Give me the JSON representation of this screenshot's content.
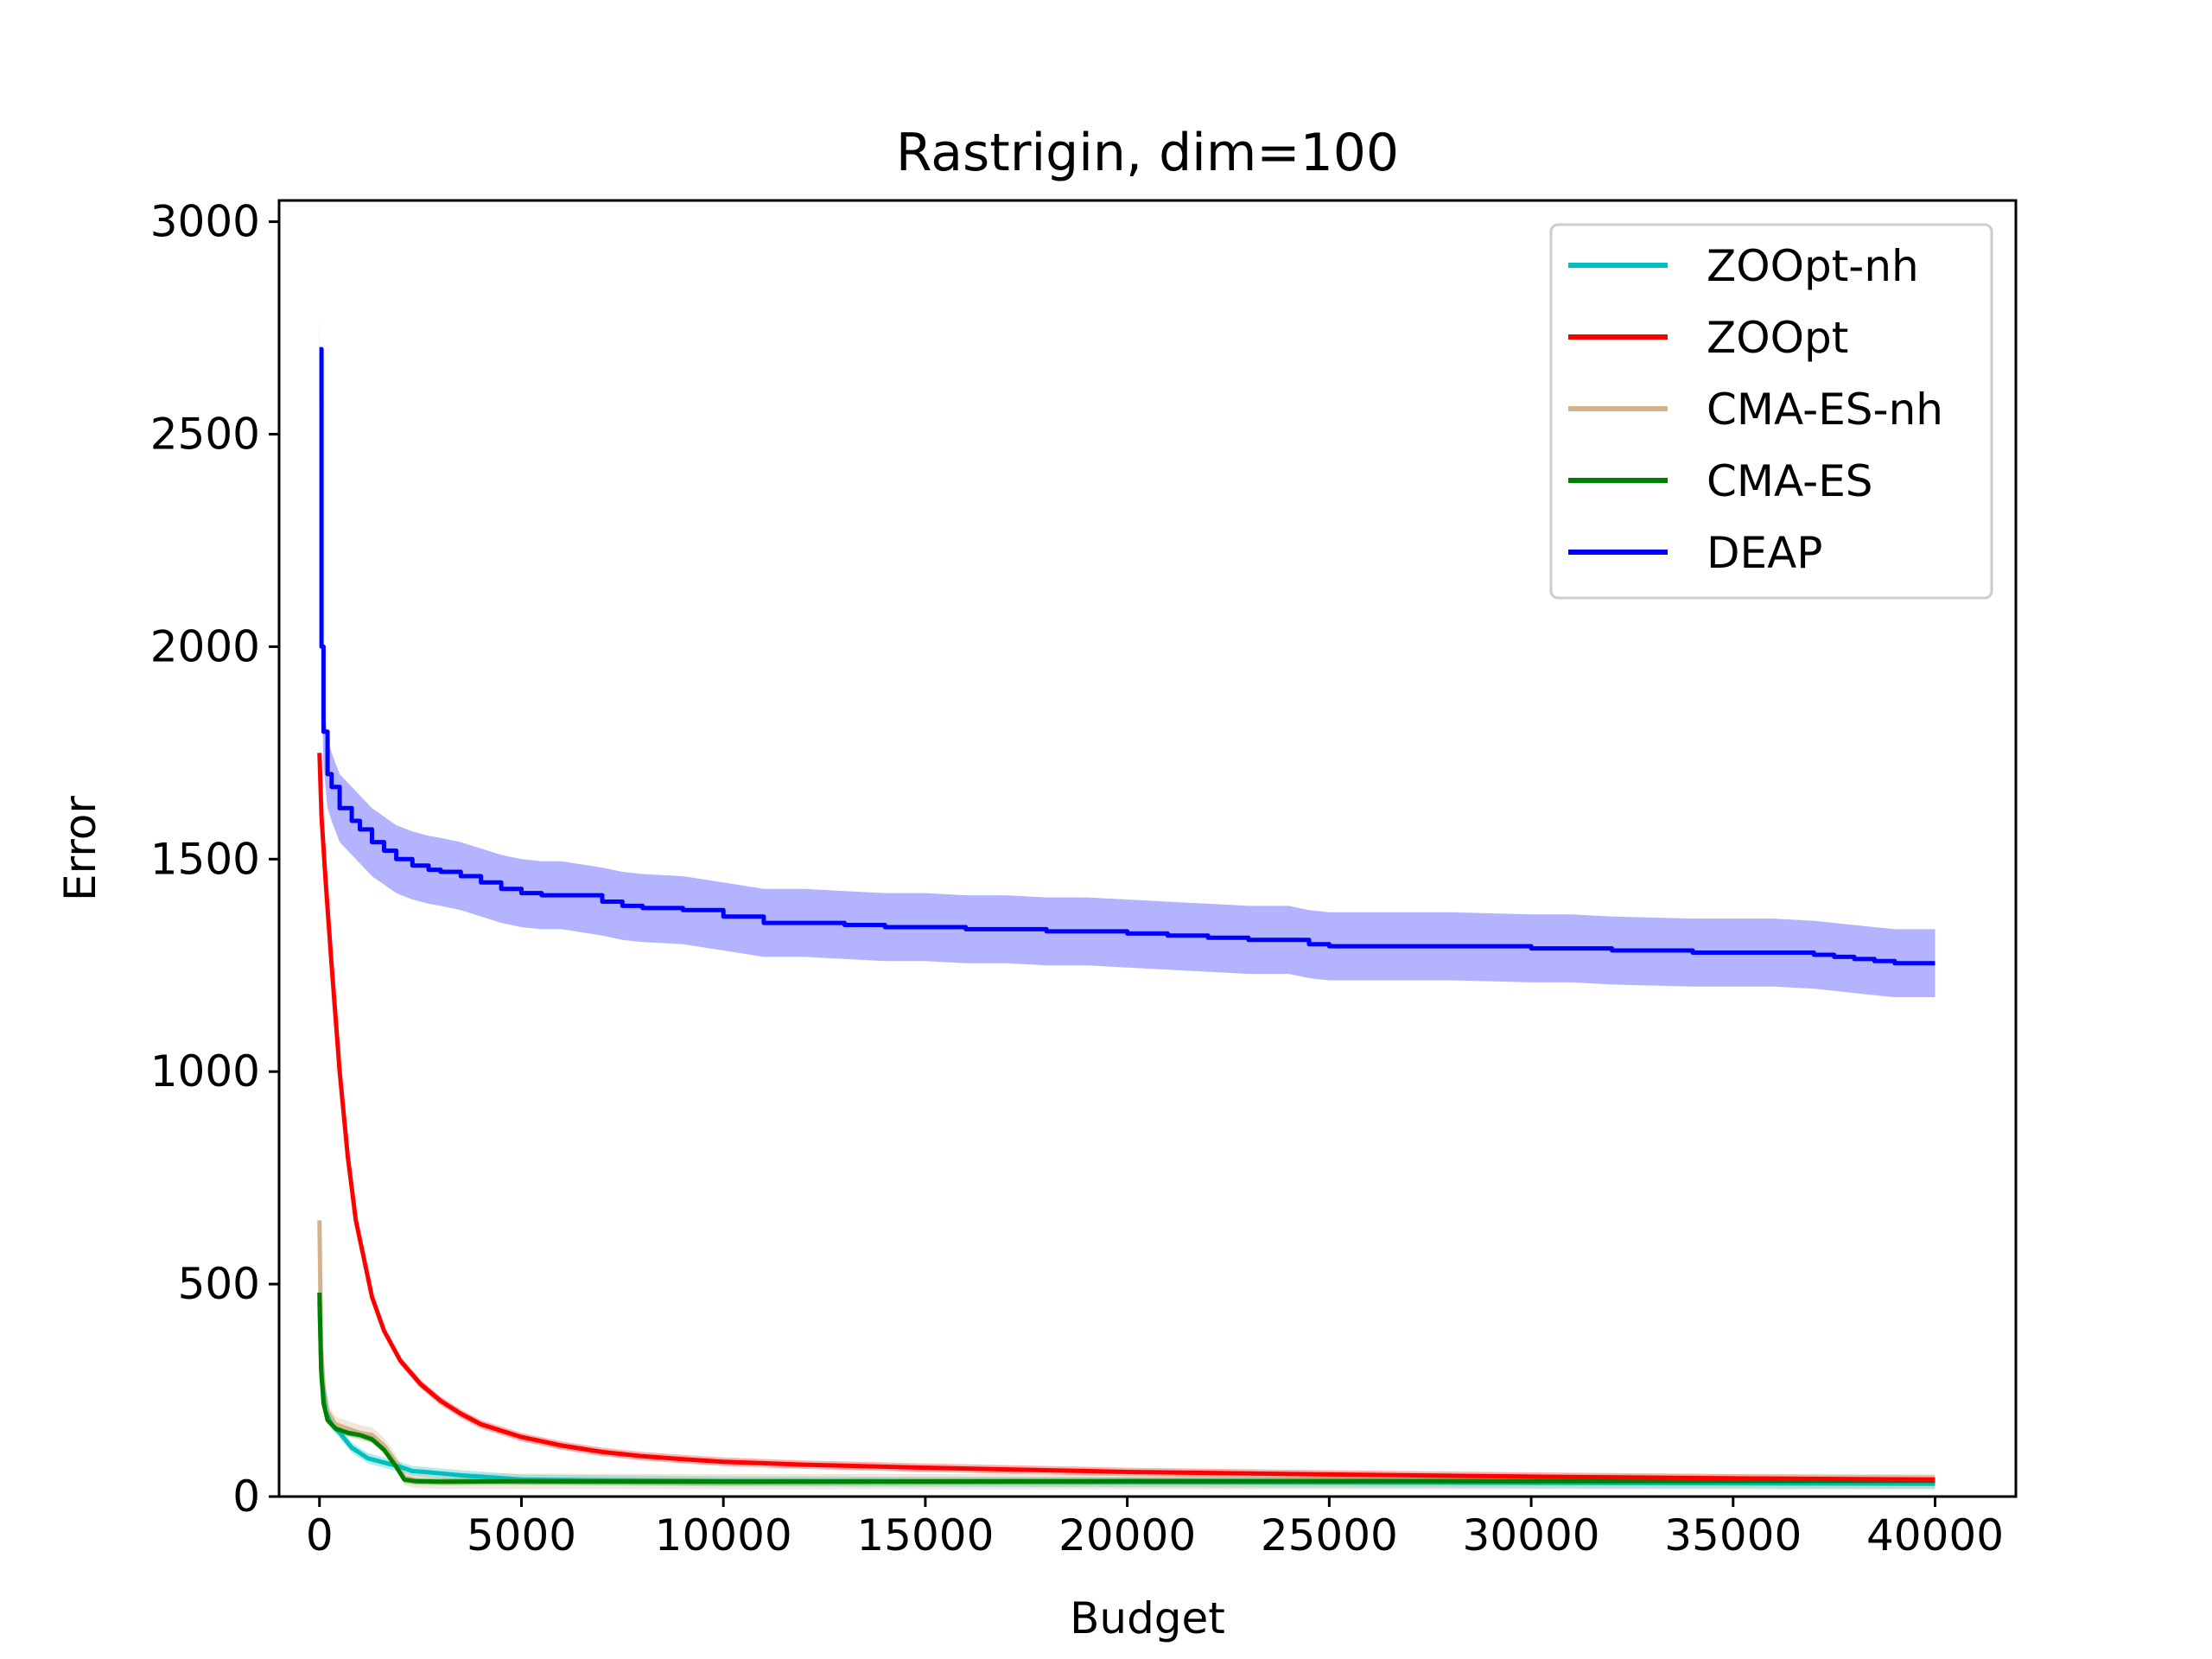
{
  "chart_data": {
    "type": "line",
    "title": "Rastrigin, dim=100",
    "xlabel": "Budget",
    "ylabel": "Error",
    "xlim": [
      -1000,
      42000
    ],
    "ylim": [
      0,
      3050
    ],
    "xticks": [
      0,
      5000,
      10000,
      15000,
      20000,
      25000,
      30000,
      35000,
      40000
    ],
    "xtick_labels": [
      "0",
      "5000",
      "10000",
      "15000",
      "20000",
      "25000",
      "30000",
      "35000",
      "40000"
    ],
    "yticks": [
      0,
      500,
      1000,
      1500,
      2000,
      2500,
      3000
    ],
    "ytick_labels": [
      "0",
      "500",
      "1000",
      "1500",
      "2000",
      "2500",
      "3000"
    ],
    "grid": false,
    "legend_position": "top-right",
    "series": [
      {
        "name": "ZOOpt-nh",
        "color": "#00bfbf",
        "x": [
          0,
          50,
          150,
          300,
          500,
          800,
          1200,
          1600,
          2000,
          2300,
          2600,
          3500,
          5000,
          10000,
          20000,
          30000,
          40000
        ],
        "y": [
          460,
          280,
          200,
          170,
          150,
          115,
          90,
          80,
          70,
          60,
          58,
          50,
          40,
          36,
          34,
          32,
          30
        ],
        "band": 12
      },
      {
        "name": "ZOOpt",
        "color": "#ff0000",
        "x": [
          0,
          50,
          150,
          300,
          500,
          700,
          900,
          1100,
          1300,
          1600,
          2000,
          2500,
          3000,
          3500,
          4000,
          5000,
          6000,
          7000,
          8000,
          9000,
          10000,
          12000,
          15000,
          20000,
          25000,
          30000,
          35000,
          40000
        ],
        "y": [
          1750,
          1600,
          1450,
          1250,
          1000,
          800,
          650,
          560,
          470,
          390,
          320,
          265,
          225,
          195,
          170,
          140,
          120,
          105,
          95,
          88,
          82,
          75,
          68,
          58,
          52,
          47,
          43,
          40
        ],
        "band": 10
      },
      {
        "name": "CMA-ES-nh",
        "color": "#d2b48c",
        "x": [
          0,
          40,
          100,
          200,
          400,
          700,
          1000,
          1300,
          1600,
          1900,
          2100,
          2400,
          3000,
          5000,
          10000,
          20000,
          30000,
          40000
        ],
        "y": [
          650,
          350,
          260,
          200,
          170,
          160,
          150,
          145,
          120,
          80,
          45,
          38,
          36,
          36,
          35,
          35,
          35,
          35
        ],
        "band": 18
      },
      {
        "name": "CMA-ES",
        "color": "#008000",
        "x": [
          0,
          40,
          100,
          200,
          400,
          700,
          1000,
          1300,
          1600,
          1900,
          2100,
          2400,
          3000,
          5000,
          10000,
          20000,
          30000,
          40000
        ],
        "y": [
          480,
          300,
          220,
          180,
          160,
          150,
          145,
          135,
          110,
          70,
          40,
          36,
          35,
          36,
          35,
          36,
          36,
          37
        ],
        "band": 8
      },
      {
        "name": "DEAP",
        "color": "#0000ff",
        "band_color": "#b3b3ff",
        "x": [
          0,
          50,
          100,
          200,
          300,
          500,
          800,
          1000,
          1300,
          1600,
          1900,
          2300,
          2700,
          3000,
          3500,
          4000,
          4500,
          5000,
          5500,
          6000,
          7000,
          7500,
          8000,
          9000,
          10000,
          11000,
          12000,
          13000,
          14000,
          15000,
          16000,
          17000,
          18000,
          19000,
          20000,
          21000,
          22000,
          23000,
          24000,
          24500,
          25000,
          26000,
          28000,
          30000,
          31000,
          32000,
          34000,
          35000,
          36000,
          37000,
          37500,
          38000,
          38500,
          39000,
          40000
        ],
        "y": [
          2700,
          2000,
          1800,
          1700,
          1670,
          1620,
          1590,
          1570,
          1540,
          1520,
          1500,
          1485,
          1475,
          1470,
          1460,
          1445,
          1430,
          1420,
          1415,
          1415,
          1400,
          1390,
          1385,
          1380,
          1365,
          1350,
          1350,
          1345,
          1340,
          1340,
          1335,
          1335,
          1330,
          1330,
          1325,
          1320,
          1315,
          1310,
          1310,
          1300,
          1295,
          1295,
          1295,
          1290,
          1290,
          1285,
          1280,
          1280,
          1280,
          1275,
          1270,
          1265,
          1260,
          1255,
          1255
        ],
        "band": 80
      }
    ]
  }
}
